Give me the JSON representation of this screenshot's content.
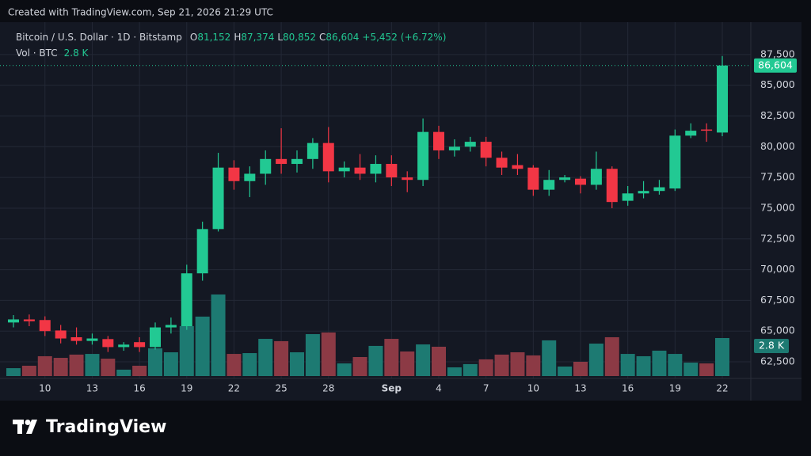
{
  "header": {
    "created": "Created with TradingView.com, Sep 21, 2026 21:29 UTC"
  },
  "watermark": "TradingView",
  "chart_data": {
    "type": "candlestick",
    "symbol": "Bitcoin / U.S. Dollar · 1D · Bitstamp",
    "ohlc_legend": [
      {
        "key": "O",
        "value": 81152,
        "label": "81,152"
      },
      {
        "key": "H",
        "value": 87374,
        "label": "87,374"
      },
      {
        "key": "L",
        "value": 80852,
        "label": "80,852"
      },
      {
        "key": "C",
        "value": 86604,
        "label": "86,604"
      }
    ],
    "change": {
      "value": 5452,
      "label": "+5,452"
    },
    "change_percent": {
      "value": 6.72,
      "label": "(+6.72%)"
    },
    "volume_legend": {
      "name": "Vol · BTC",
      "value": 2800,
      "label": "2.8 K"
    },
    "last_price_label": "86,604",
    "up_color": "#22c993",
    "down_color": "#f23645",
    "volume_up_color": "#1d7a72",
    "volume_down_color": "#8c3a45",
    "grid": true,
    "categories": [
      null,
      null,
      "10",
      null,
      null,
      "13",
      null,
      null,
      "16",
      null,
      null,
      "19",
      null,
      null,
      "22",
      null,
      null,
      "25",
      null,
      null,
      "28",
      null,
      null,
      null,
      "Sep",
      null,
      null,
      "4",
      null,
      null,
      "7",
      null,
      null,
      "10",
      null,
      null,
      "13",
      null,
      null,
      "16",
      null,
      null,
      "19",
      null,
      null,
      "22"
    ],
    "open": [
      65700,
      65950,
      65900,
      65050,
      64500,
      64200,
      64350,
      63700,
      64100,
      63700,
      65300,
      65400,
      69700,
      73300,
      78300,
      77200,
      77800,
      79000,
      78600,
      79000,
      80300,
      78000,
      78300,
      77800,
      78600,
      77500,
      77300,
      81200,
      79700,
      80000,
      80400,
      79100,
      78500,
      78300,
      76500,
      77300,
      77400,
      76900,
      78200,
      75600,
      76200,
      76400,
      76600,
      80900,
      81400,
      81152
    ],
    "high": [
      66300,
      66350,
      66200,
      65500,
      65300,
      64800,
      64600,
      64100,
      64500,
      65700,
      66100,
      70400,
      73900,
      79500,
      78900,
      78400,
      79700,
      81500,
      79700,
      80700,
      81600,
      78800,
      79400,
      79300,
      79300,
      78000,
      82300,
      81700,
      80600,
      80800,
      80800,
      79600,
      79400,
      78500,
      78100,
      77700,
      77600,
      79600,
      78400,
      76800,
      77200,
      77300,
      81400,
      81900,
      81900,
      87374
    ],
    "low": [
      65300,
      65400,
      64600,
      64000,
      63900,
      63900,
      63300,
      63400,
      63300,
      63500,
      64800,
      65100,
      69100,
      73100,
      76500,
      75900,
      76900,
      77800,
      77900,
      78200,
      77100,
      77500,
      77300,
      77100,
      76800,
      76300,
      76800,
      79000,
      79200,
      79600,
      78400,
      77700,
      77700,
      76000,
      76000,
      77100,
      76200,
      76500,
      75000,
      75200,
      75800,
      76100,
      76400,
      80700,
      80400,
      80852
    ],
    "close": [
      65950,
      65800,
      65000,
      64400,
      64200,
      64400,
      63700,
      63900,
      63700,
      65300,
      65500,
      69700,
      73300,
      78300,
      77200,
      77800,
      79000,
      78600,
      79000,
      80300,
      78000,
      78300,
      77800,
      78600,
      77500,
      77300,
      81200,
      79700,
      80000,
      80400,
      79100,
      78300,
      78200,
      76500,
      77300,
      77500,
      76900,
      78200,
      75500,
      76200,
      76400,
      76700,
      80900,
      81300,
      81300,
      86604
    ],
    "volume": [
      580,
      760,
      1460,
      1340,
      1580,
      1630,
      1280,
      470,
      760,
      2040,
      1750,
      3680,
      4380,
      6010,
      1630,
      1690,
      2740,
      2570,
      1750,
      3090,
      3210,
      930,
      1400,
      2220,
      2740,
      1810,
      2330,
      2160,
      640,
      880,
      1230,
      1580,
      1750,
      1520,
      2630,
      700,
      1050,
      2390,
      2860,
      1630,
      1460,
      1870,
      1630,
      990,
      930,
      2800
    ],
    "ylim": [
      61150,
      90130
    ],
    "yticks": [
      {
        "value": 62500,
        "label": "62,500"
      },
      {
        "value": 65000,
        "label": "65,000"
      },
      {
        "value": 67500,
        "label": "67,500"
      },
      {
        "value": 70000,
        "label": "70,000"
      },
      {
        "value": 72500,
        "label": "72,500"
      },
      {
        "value": 75000,
        "label": "75,000"
      },
      {
        "value": 77500,
        "label": "77,500"
      },
      {
        "value": 80000,
        "label": "80,000"
      },
      {
        "value": 82500,
        "label": "82,500"
      },
      {
        "value": 85000,
        "label": "85,000"
      },
      {
        "value": 87500,
        "label": "87,500"
      }
    ]
  }
}
